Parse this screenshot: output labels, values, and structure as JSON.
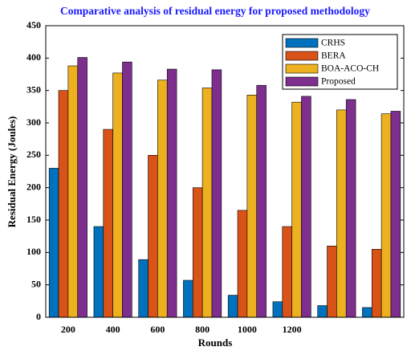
{
  "chart_data": {
    "type": "bar",
    "title": "Comparative analysis of residual energy for proposed methodology",
    "x_label": "Rounds",
    "y_label": "Residual Energy (Joules)",
    "categories": [
      "200",
      "400",
      "600",
      "800",
      "1000",
      "1200",
      null,
      null
    ],
    "series": [
      {
        "name": "CRHS",
        "color": "#0072bd",
        "values": [
          230,
          140,
          89,
          57,
          34,
          24,
          18,
          15
        ]
      },
      {
        "name": "BERA",
        "color": "#d95319",
        "values": [
          350,
          290,
          250,
          200,
          165,
          140,
          110,
          105
        ]
      },
      {
        "name": "BOA-ACO-CH",
        "color": "#edb120",
        "values": [
          388,
          377,
          366,
          354,
          343,
          332,
          320,
          314
        ]
      },
      {
        "name": "Proposed",
        "color": "#7e2f8e",
        "values": [
          401,
          394,
          383,
          382,
          358,
          341,
          336,
          318
        ]
      }
    ],
    "ylim": [
      0,
      450
    ],
    "yticks": [
      0,
      50,
      100,
      150,
      200,
      250,
      300,
      350,
      400,
      450
    ],
    "legend": "upper right"
  }
}
